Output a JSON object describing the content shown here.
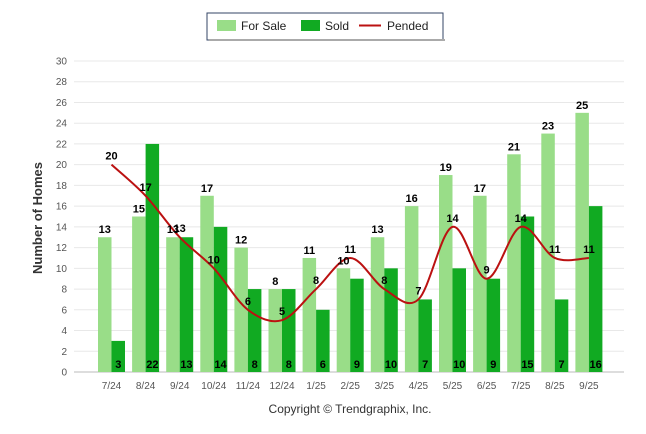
{
  "chart_data": {
    "type": "bar",
    "title": "",
    "xlabel": "",
    "ylabel": "Number of Homes",
    "ylim": [
      0,
      30
    ],
    "ytick_step": 2,
    "grid": true,
    "legend_position": "top-center",
    "categories": [
      "7/24",
      "8/24",
      "9/24",
      "10/24",
      "11/24",
      "12/24",
      "1/25",
      "2/25",
      "3/25",
      "4/25",
      "5/25",
      "6/25",
      "7/25",
      "8/25",
      "9/25"
    ],
    "series": [
      {
        "name": "For Sale",
        "kind": "bar",
        "color": "#99dd88",
        "values": [
          13,
          15,
          13,
          17,
          12,
          8,
          11,
          10,
          13,
          16,
          19,
          17,
          21,
          23,
          25
        ]
      },
      {
        "name": "Sold",
        "kind": "bar",
        "color": "#11aa22",
        "values": [
          3,
          22,
          13,
          14,
          8,
          8,
          6,
          9,
          10,
          7,
          10,
          9,
          15,
          7,
          16
        ]
      },
      {
        "name": "Pended",
        "kind": "line",
        "color": "#bb1111",
        "values": [
          20,
          17,
          13,
          10,
          6,
          5,
          8,
          11,
          8,
          7,
          14,
          9,
          14,
          11,
          11
        ]
      }
    ]
  },
  "footer": {
    "copyright": "Copyright © Trendgraphix, Inc."
  }
}
